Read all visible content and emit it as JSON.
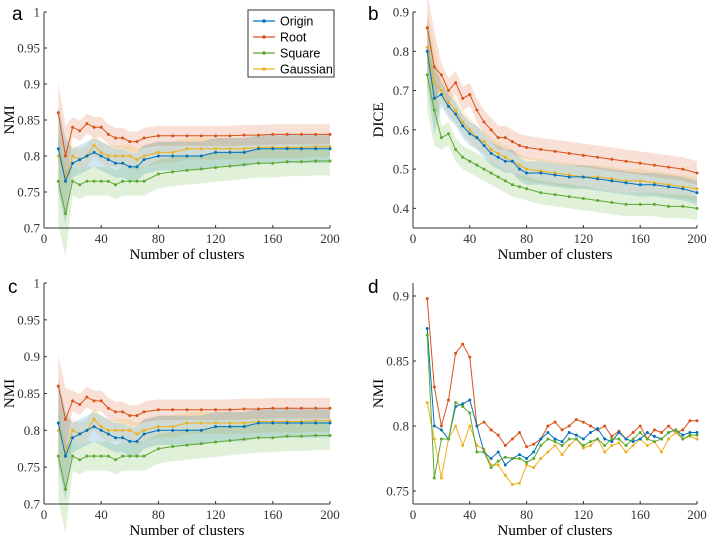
{
  "colors": {
    "Origin": "#0072BD",
    "Root": "#D95319",
    "Square": "#5BAA2F",
    "Gaussian": "#EDB120"
  },
  "legend": [
    "Origin",
    "Root",
    "Square",
    "Gaussian"
  ],
  "chart_data": [
    {
      "id": "a",
      "letter": "a",
      "type": "line",
      "xlabel": "Number of clusters",
      "ylabel": "NMI",
      "xlim": [
        0,
        200
      ],
      "ylim": [
        0.7,
        1.0
      ],
      "xticks": [
        0,
        40,
        80,
        120,
        160,
        200
      ],
      "yticks": [
        0.7,
        0.75,
        0.8,
        0.85,
        0.9,
        0.95,
        1
      ],
      "ytick_labels": [
        "0.7",
        "0.75",
        "0.8",
        "0.85",
        "0.9",
        "0.95",
        "1"
      ],
      "legend": true,
      "band": [
        0.02,
        0.014,
        0.02,
        0.015
      ],
      "x": [
        10,
        15,
        20,
        25,
        30,
        35,
        40,
        45,
        50,
        55,
        60,
        65,
        70,
        80,
        90,
        100,
        110,
        120,
        130,
        140,
        150,
        160,
        170,
        180,
        190,
        200
      ],
      "series": [
        {
          "name": "Origin",
          "values": [
            0.81,
            0.765,
            0.79,
            0.795,
            0.8,
            0.805,
            0.8,
            0.795,
            0.79,
            0.79,
            0.785,
            0.785,
            0.795,
            0.8,
            0.8,
            0.8,
            0.8,
            0.805,
            0.805,
            0.805,
            0.81,
            0.81,
            0.81,
            0.81,
            0.81,
            0.81
          ]
        },
        {
          "name": "Root",
          "values": [
            0.86,
            0.8,
            0.84,
            0.835,
            0.845,
            0.84,
            0.84,
            0.83,
            0.825,
            0.825,
            0.82,
            0.82,
            0.825,
            0.828,
            0.828,
            0.828,
            0.828,
            0.828,
            0.828,
            0.829,
            0.829,
            0.83,
            0.83,
            0.83,
            0.83,
            0.83
          ]
        },
        {
          "name": "Square",
          "values": [
            0.765,
            0.72,
            0.765,
            0.76,
            0.765,
            0.765,
            0.765,
            0.765,
            0.76,
            0.765,
            0.765,
            0.765,
            0.765,
            0.775,
            0.778,
            0.78,
            0.782,
            0.784,
            0.786,
            0.788,
            0.79,
            0.79,
            0.792,
            0.792,
            0.793,
            0.793
          ]
        },
        {
          "name": "Gaussian",
          "values": [
            0.8,
            0.77,
            0.8,
            0.795,
            0.8,
            0.815,
            0.805,
            0.8,
            0.8,
            0.8,
            0.8,
            0.795,
            0.8,
            0.805,
            0.805,
            0.81,
            0.81,
            0.81,
            0.81,
            0.81,
            0.812,
            0.812,
            0.812,
            0.812,
            0.813,
            0.813
          ]
        }
      ]
    },
    {
      "id": "b",
      "letter": "b",
      "type": "line",
      "xlabel": "Number of clusters",
      "ylabel": "DICE",
      "xlim": [
        0,
        200
      ],
      "ylim": [
        0.35,
        0.9
      ],
      "xticks": [
        0,
        40,
        80,
        120,
        160,
        200
      ],
      "yticks": [
        0.4,
        0.5,
        0.6,
        0.7,
        0.8,
        0.9
      ],
      "ytick_labels": [
        "0.4",
        "0.5",
        "0.6",
        "0.7",
        "0.8",
        "0.9"
      ],
      "legend": false,
      "band": [
        0.03,
        0.03,
        0.03,
        0.03
      ],
      "x": [
        10,
        15,
        20,
        25,
        30,
        35,
        40,
        45,
        50,
        55,
        60,
        65,
        70,
        75,
        80,
        90,
        100,
        110,
        120,
        130,
        140,
        150,
        160,
        170,
        180,
        190,
        200
      ],
      "series": [
        {
          "name": "Origin",
          "values": [
            0.8,
            0.68,
            0.69,
            0.66,
            0.64,
            0.61,
            0.59,
            0.58,
            0.56,
            0.54,
            0.53,
            0.52,
            0.52,
            0.5,
            0.49,
            0.49,
            0.485,
            0.48,
            0.48,
            0.475,
            0.47,
            0.465,
            0.46,
            0.46,
            0.455,
            0.45,
            0.44
          ]
        },
        {
          "name": "Root",
          "values": [
            0.86,
            0.76,
            0.74,
            0.7,
            0.72,
            0.68,
            0.69,
            0.65,
            0.62,
            0.6,
            0.58,
            0.58,
            0.57,
            0.56,
            0.555,
            0.55,
            0.545,
            0.54,
            0.535,
            0.53,
            0.525,
            0.52,
            0.515,
            0.51,
            0.505,
            0.5,
            0.49
          ]
        },
        {
          "name": "Square",
          "values": [
            0.74,
            0.65,
            0.58,
            0.59,
            0.55,
            0.53,
            0.52,
            0.51,
            0.5,
            0.49,
            0.48,
            0.47,
            0.46,
            0.455,
            0.45,
            0.44,
            0.435,
            0.43,
            0.425,
            0.42,
            0.415,
            0.41,
            0.41,
            0.41,
            0.405,
            0.405,
            0.4
          ]
        },
        {
          "name": "Gaussian",
          "values": [
            0.81,
            0.72,
            0.7,
            0.67,
            0.65,
            0.62,
            0.6,
            0.58,
            0.57,
            0.55,
            0.54,
            0.53,
            0.52,
            0.51,
            0.5,
            0.495,
            0.49,
            0.485,
            0.48,
            0.48,
            0.475,
            0.47,
            0.47,
            0.465,
            0.46,
            0.455,
            0.45
          ]
        }
      ]
    },
    {
      "id": "c",
      "letter": "c",
      "type": "line",
      "xlabel": "Number of clusters",
      "ylabel": "NMI",
      "xlim": [
        0,
        200
      ],
      "ylim": [
        0.7,
        1.0
      ],
      "xticks": [
        0,
        40,
        80,
        120,
        160,
        200
      ],
      "yticks": [
        0.7,
        0.75,
        0.8,
        0.85,
        0.9,
        0.95,
        1
      ],
      "ytick_labels": [
        "0.7",
        "0.75",
        "0.8",
        "0.85",
        "0.9",
        "0.95",
        "1"
      ],
      "legend": false,
      "band": [
        0.02,
        0.014,
        0.02,
        0.015
      ],
      "x": [
        10,
        15,
        20,
        25,
        30,
        35,
        40,
        45,
        50,
        55,
        60,
        65,
        70,
        80,
        90,
        100,
        110,
        120,
        130,
        140,
        150,
        160,
        170,
        180,
        190,
        200
      ],
      "series": [
        {
          "name": "Origin",
          "values": [
            0.81,
            0.765,
            0.79,
            0.795,
            0.8,
            0.805,
            0.8,
            0.795,
            0.79,
            0.79,
            0.785,
            0.785,
            0.795,
            0.8,
            0.8,
            0.8,
            0.8,
            0.805,
            0.805,
            0.805,
            0.81,
            0.81,
            0.81,
            0.81,
            0.81,
            0.81
          ]
        },
        {
          "name": "Root",
          "values": [
            0.86,
            0.815,
            0.84,
            0.835,
            0.845,
            0.84,
            0.84,
            0.83,
            0.825,
            0.825,
            0.82,
            0.82,
            0.825,
            0.828,
            0.828,
            0.828,
            0.828,
            0.828,
            0.828,
            0.829,
            0.829,
            0.83,
            0.83,
            0.83,
            0.83,
            0.83
          ]
        },
        {
          "name": "Square",
          "values": [
            0.765,
            0.72,
            0.765,
            0.76,
            0.765,
            0.765,
            0.765,
            0.765,
            0.76,
            0.765,
            0.765,
            0.765,
            0.765,
            0.775,
            0.778,
            0.78,
            0.782,
            0.784,
            0.786,
            0.788,
            0.79,
            0.79,
            0.792,
            0.792,
            0.793,
            0.793
          ]
        },
        {
          "name": "Gaussian",
          "values": [
            0.8,
            0.77,
            0.8,
            0.795,
            0.8,
            0.815,
            0.805,
            0.8,
            0.8,
            0.8,
            0.8,
            0.795,
            0.8,
            0.805,
            0.805,
            0.81,
            0.81,
            0.81,
            0.81,
            0.81,
            0.812,
            0.812,
            0.812,
            0.812,
            0.813,
            0.813
          ]
        }
      ]
    },
    {
      "id": "d",
      "letter": "d",
      "type": "line",
      "xlabel": "Number of clusters",
      "ylabel": "NMI",
      "xlim": [
        0,
        200
      ],
      "ylim": [
        0.74,
        0.91
      ],
      "xticks": [
        0,
        40,
        80,
        120,
        160,
        200
      ],
      "yticks": [
        0.75,
        0.8,
        0.85,
        0.9
      ],
      "ytick_labels": [
        "0.75",
        "0.8",
        "0.85",
        "0.9"
      ],
      "legend": false,
      "band": null,
      "x": [
        10,
        15,
        20,
        25,
        30,
        35,
        40,
        45,
        50,
        55,
        60,
        65,
        70,
        75,
        80,
        85,
        90,
        95,
        100,
        105,
        110,
        115,
        120,
        125,
        130,
        135,
        140,
        145,
        150,
        155,
        160,
        165,
        170,
        175,
        180,
        185,
        190,
        195,
        200
      ],
      "series": [
        {
          "name": "Origin",
          "values": [
            0.875,
            0.8,
            0.797,
            0.79,
            0.815,
            0.817,
            0.82,
            0.8,
            0.78,
            0.775,
            0.78,
            0.77,
            0.775,
            0.778,
            0.775,
            0.78,
            0.79,
            0.795,
            0.79,
            0.788,
            0.795,
            0.793,
            0.79,
            0.795,
            0.798,
            0.79,
            0.788,
            0.795,
            0.79,
            0.788,
            0.79,
            0.795,
            0.792,
            0.79,
            0.795,
            0.797,
            0.793,
            0.795,
            0.795
          ]
        },
        {
          "name": "Root",
          "values": [
            0.898,
            0.83,
            0.8,
            0.82,
            0.856,
            0.863,
            0.853,
            0.8,
            0.803,
            0.797,
            0.793,
            0.785,
            0.79,
            0.795,
            0.784,
            0.786,
            0.79,
            0.8,
            0.803,
            0.797,
            0.8,
            0.805,
            0.803,
            0.8,
            0.797,
            0.8,
            0.792,
            0.796,
            0.79,
            0.795,
            0.8,
            0.79,
            0.797,
            0.795,
            0.8,
            0.795,
            0.797,
            0.804,
            0.804
          ]
        },
        {
          "name": "Square",
          "values": [
            0.87,
            0.76,
            0.79,
            0.79,
            0.818,
            0.815,
            0.81,
            0.78,
            0.78,
            0.768,
            0.773,
            0.776,
            0.775,
            0.775,
            0.772,
            0.775,
            0.785,
            0.79,
            0.788,
            0.785,
            0.79,
            0.79,
            0.785,
            0.788,
            0.79,
            0.785,
            0.79,
            0.79,
            0.785,
            0.79,
            0.795,
            0.79,
            0.788,
            0.79,
            0.795,
            0.797,
            0.79,
            0.793,
            0.793
          ]
        },
        {
          "name": "Gaussian",
          "values": [
            0.818,
            0.79,
            0.76,
            0.79,
            0.8,
            0.785,
            0.8,
            0.785,
            0.782,
            0.77,
            0.77,
            0.762,
            0.755,
            0.756,
            0.77,
            0.768,
            0.775,
            0.78,
            0.785,
            0.778,
            0.785,
            0.79,
            0.783,
            0.785,
            0.79,
            0.78,
            0.785,
            0.787,
            0.78,
            0.785,
            0.79,
            0.785,
            0.788,
            0.78,
            0.79,
            0.795,
            0.79,
            0.792,
            0.79
          ]
        }
      ]
    }
  ]
}
